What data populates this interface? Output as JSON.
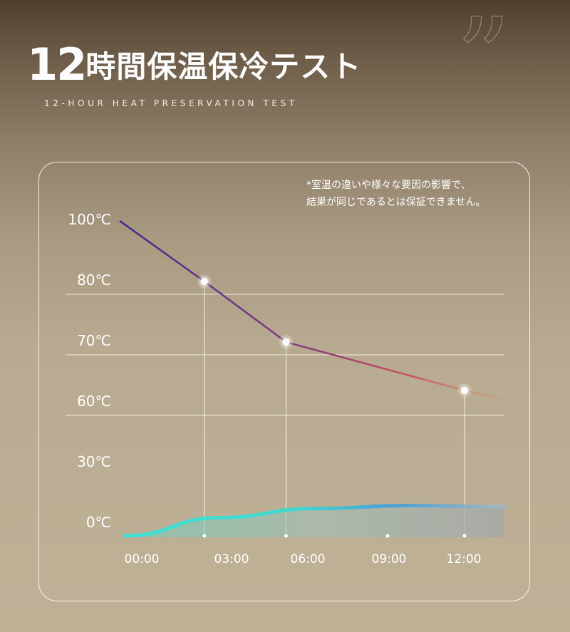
{
  "header": {
    "quote_mark": "”",
    "title_number": "12",
    "title_text": "時間保温保冷テスト",
    "subtitle": "12-HOUR HEAT PRESERVATION TEST"
  },
  "chart_data": {
    "type": "line",
    "title": "12時間保温保冷テスト",
    "subtitle": "12-HOUR HEAT PRESERVATION TEST",
    "note_lines": [
      "*室温の違いや様々な要因の影響で、",
      "結果が同じであるとは保証できません。"
    ],
    "x_ticks": [
      "00:00",
      "03:00",
      "06:00",
      "09:00",
      "12:00"
    ],
    "x_values_hours": [
      0,
      3,
      6,
      9,
      12
    ],
    "y_ticks": [
      "100℃",
      "80℃",
      "70℃",
      "60℃",
      "30℃",
      "0℃"
    ],
    "y_tick_values": [
      100,
      80,
      70,
      60,
      30,
      0
    ],
    "grid_lines_at": [
      80,
      70,
      60
    ],
    "series": [
      {
        "role": "hot",
        "x": [
          0,
          3,
          6,
          12
        ],
        "y": [
          100,
          80,
          70,
          62
        ],
        "markers_at": [
          3,
          6,
          12
        ],
        "colors": [
          "#3a2a8a",
          "#7a3a88",
          "#c85060",
          "#e08070"
        ]
      },
      {
        "role": "cold",
        "x": [
          0,
          3,
          6,
          9,
          12
        ],
        "y": [
          -2,
          1,
          2.5,
          3,
          2.8
        ],
        "colors": [
          "#3fe0d2",
          "#4aa0d8",
          "#a6b7bd"
        ]
      }
    ]
  }
}
